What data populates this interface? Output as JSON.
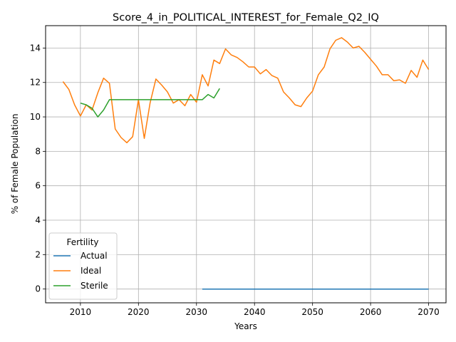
{
  "chart_data": {
    "type": "line",
    "title": "Score_4_in_POLITICAL_INTEREST_for_Female_Q2_IQ",
    "xlabel": "Years",
    "ylabel": "% of Female Population",
    "xlim": [
      2004,
      2073
    ],
    "ylim": [
      -0.8,
      15.3
    ],
    "xticks": [
      2010,
      2020,
      2030,
      2040,
      2050,
      2060,
      2070
    ],
    "yticks": [
      0,
      2,
      4,
      6,
      8,
      10,
      12,
      14
    ],
    "grid": true,
    "legend": {
      "title": "Fertility",
      "placement": "lower-left",
      "entries": [
        "Actual",
        "Ideal",
        "Sterile"
      ]
    },
    "series": [
      {
        "name": "Actual",
        "color": "#1f77b4",
        "x": [
          2031,
          2032,
          2033,
          2034,
          2035,
          2036,
          2037,
          2038,
          2039,
          2040,
          2041,
          2042,
          2043,
          2044,
          2045,
          2046,
          2047,
          2048,
          2049,
          2050,
          2051,
          2052,
          2053,
          2054,
          2055,
          2056,
          2057,
          2058,
          2059,
          2060,
          2061,
          2062,
          2063,
          2064,
          2065,
          2066,
          2067,
          2068,
          2069,
          2070
        ],
        "y": [
          0,
          0,
          0,
          0,
          0,
          0,
          0,
          0,
          0,
          0,
          0,
          0,
          0,
          0,
          0,
          0,
          0,
          0,
          0,
          0,
          0,
          0,
          0,
          0,
          0,
          0,
          0,
          0,
          0,
          0,
          0,
          0,
          0,
          0,
          0,
          0,
          0,
          0,
          0,
          0
        ]
      },
      {
        "name": "Ideal",
        "color": "#ff7f0e",
        "x": [
          2007,
          2008,
          2009,
          2010,
          2011,
          2012,
          2013,
          2014,
          2015,
          2016,
          2017,
          2018,
          2019,
          2020,
          2021,
          2022,
          2023,
          2024,
          2025,
          2026,
          2027,
          2028,
          2029,
          2030,
          2031,
          2032,
          2033,
          2034,
          2035,
          2036,
          2037,
          2038,
          2039,
          2040,
          2041,
          2042,
          2043,
          2044,
          2045,
          2046,
          2047,
          2048,
          2049,
          2050,
          2051,
          2052,
          2053,
          2054,
          2055,
          2056,
          2057,
          2058,
          2059,
          2060,
          2061,
          2062,
          2063,
          2064,
          2065,
          2066,
          2067,
          2068,
          2069,
          2070
        ],
        "y": [
          12.05,
          11.6,
          10.7,
          10.05,
          10.7,
          10.4,
          11.4,
          12.25,
          11.95,
          9.3,
          8.8,
          8.5,
          8.85,
          11.0,
          8.75,
          10.8,
          12.2,
          11.85,
          11.45,
          10.8,
          11.0,
          10.65,
          11.3,
          10.85,
          12.45,
          11.8,
          13.3,
          13.1,
          13.95,
          13.6,
          13.45,
          13.2,
          12.9,
          12.9,
          12.5,
          12.75,
          12.4,
          12.25,
          11.45,
          11.1,
          10.7,
          10.6,
          11.1,
          11.5,
          12.45,
          12.9,
          13.95,
          14.45,
          14.6,
          14.35,
          14.0,
          14.1,
          13.75,
          13.35,
          12.95,
          12.45,
          12.45,
          12.1,
          12.15,
          11.95,
          12.7,
          12.3,
          13.3,
          12.75
        ]
      },
      {
        "name": "Sterile",
        "color": "#2ca02c",
        "x": [
          2010,
          2011,
          2012,
          2013,
          2014,
          2015,
          2016,
          2017,
          2018,
          2019,
          2020,
          2021,
          2022,
          2023,
          2024,
          2025,
          2026,
          2027,
          2028,
          2029,
          2030,
          2031,
          2032,
          2033,
          2034
        ],
        "y": [
          10.8,
          10.7,
          10.5,
          10.0,
          10.4,
          11.0,
          11.0,
          11.0,
          11.0,
          11.0,
          11.0,
          11.0,
          11.0,
          11.0,
          11.0,
          11.0,
          11.0,
          11.0,
          11.0,
          11.0,
          11.0,
          11.0,
          11.3,
          11.1,
          11.65
        ]
      }
    ]
  }
}
